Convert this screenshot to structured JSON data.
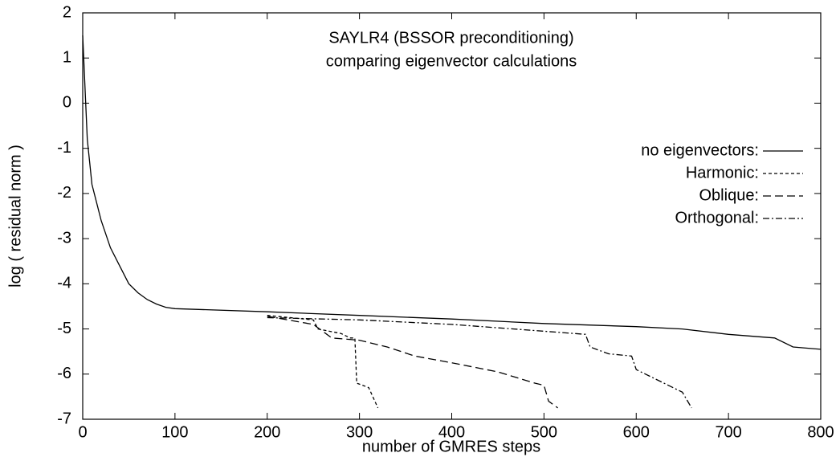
{
  "chart_data": {
    "type": "line",
    "title": "SAYLR4 (BSSOR preconditioning)",
    "subtitle": "comparing eigenvector calculations",
    "x_label": "number of GMRES steps",
    "y_label": "log ( residual norm )",
    "xlim": [
      0,
      800
    ],
    "xticks": [
      0,
      100,
      200,
      300,
      400,
      500,
      600,
      700,
      800
    ],
    "ylim": [
      -7,
      2
    ],
    "yticks": [
      -7,
      -6,
      -5,
      -4,
      -3,
      -2,
      -1,
      0,
      1,
      2
    ],
    "legend": "right",
    "grid": false,
    "series": [
      {
        "name": "no eigenvectors:",
        "color": "#000000",
        "dash": "solid",
        "x": [
          0,
          5,
          10,
          20,
          30,
          40,
          50,
          60,
          70,
          80,
          90,
          100,
          200,
          300,
          400,
          500,
          600,
          650,
          700,
          750,
          770,
          800
        ],
        "values": [
          1.5,
          -0.8,
          -1.8,
          -2.6,
          -3.2,
          -3.6,
          -4.0,
          -4.2,
          -4.35,
          -4.45,
          -4.52,
          -4.55,
          -4.62,
          -4.7,
          -4.78,
          -4.88,
          -4.95,
          -5.0,
          -5.12,
          -5.2,
          -5.4,
          -5.45
        ]
      },
      {
        "name": "Harmonic:",
        "color": "#000000",
        "dash": "dotted",
        "x": [
          200,
          250,
          255,
          280,
          290,
          295,
          297,
          310,
          320
        ],
        "values": [
          -4.7,
          -4.8,
          -5.0,
          -5.1,
          -5.2,
          -5.2,
          -6.2,
          -6.3,
          -6.75
        ]
      },
      {
        "name": "Oblique:",
        "color": "#000000",
        "dash": "dashed",
        "x": [
          200,
          250,
          270,
          300,
          330,
          360,
          400,
          450,
          490,
          500,
          505,
          515
        ],
        "values": [
          -4.72,
          -4.9,
          -5.2,
          -5.25,
          -5.4,
          -5.6,
          -5.75,
          -5.95,
          -6.2,
          -6.25,
          -6.6,
          -6.75
        ]
      },
      {
        "name": "Orthogonal:",
        "color": "#000000",
        "dash": "dashdot",
        "x": [
          200,
          300,
          400,
          500,
          545,
          550,
          570,
          595,
          600,
          620,
          650,
          660
        ],
        "values": [
          -4.75,
          -4.8,
          -4.9,
          -5.05,
          -5.12,
          -5.4,
          -5.55,
          -5.6,
          -5.9,
          -6.1,
          -6.4,
          -6.75
        ]
      }
    ]
  }
}
